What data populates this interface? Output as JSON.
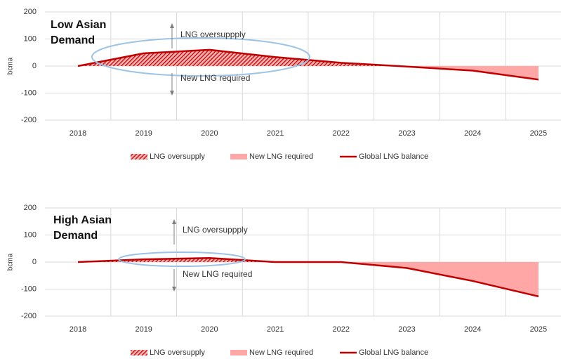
{
  "chart_data": [
    {
      "type": "line",
      "title": "Low Asian Demand",
      "y_label": "bcma",
      "categories": [
        "2018",
        "2019",
        "2020",
        "2021",
        "2022",
        "2023",
        "2024",
        "2025"
      ],
      "series": [
        {
          "name": "Global LNG balance",
          "color": "#c00000",
          "values": [
            0,
            47,
            60,
            33,
            12,
            -2,
            -17,
            -50
          ]
        }
      ],
      "areas": [
        {
          "name": "LNG oversupply",
          "color": "#c00000",
          "side": "positive",
          "hatched": true
        },
        {
          "name": "New LNG required",
          "color": "#ffa6a6",
          "side": "negative",
          "hatched": false
        }
      ],
      "annotations": [
        "LNG oversuppply",
        "New LNG required"
      ],
      "ylim": [
        -200,
        200
      ],
      "yticks": [
        -200,
        -100,
        0,
        100,
        200
      ],
      "grid": true
    },
    {
      "type": "line",
      "title": "High Asian Demand",
      "y_label": "bcma",
      "categories": [
        "2018",
        "2019",
        "2020",
        "2021",
        "2022",
        "2023",
        "2024",
        "2025"
      ],
      "series": [
        {
          "name": "Global LNG balance",
          "color": "#c00000",
          "values": [
            0,
            10,
            15,
            0,
            0,
            -22,
            -70,
            -127
          ]
        }
      ],
      "areas": [
        {
          "name": "LNG oversupply",
          "color": "#c00000",
          "side": "positive",
          "hatched": true
        },
        {
          "name": "New LNG required",
          "color": "#ffa6a6",
          "side": "negative",
          "hatched": false
        }
      ],
      "annotations": [
        "LNG oversuppply",
        "New LNG required"
      ],
      "ylim": [
        -200,
        200
      ],
      "yticks": [
        -200,
        -100,
        0,
        100,
        200
      ],
      "grid": true
    }
  ]
}
